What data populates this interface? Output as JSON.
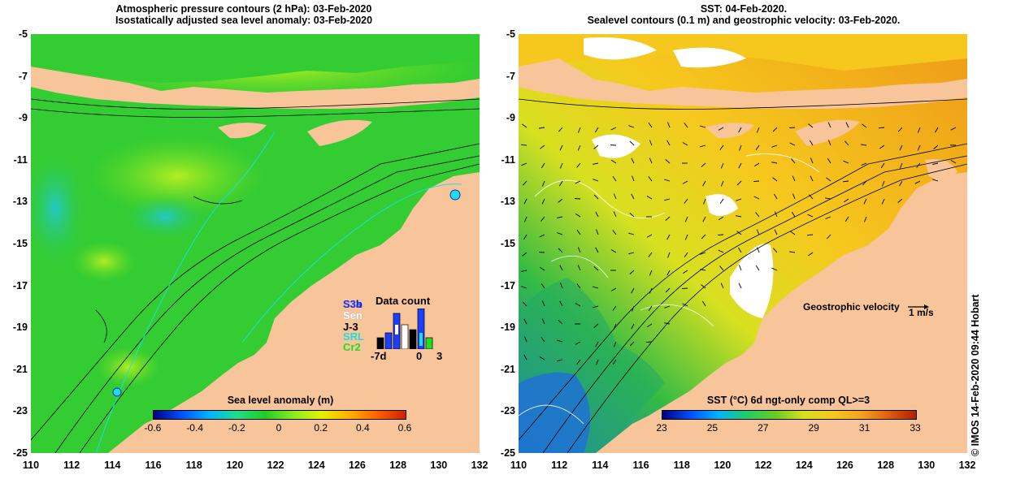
{
  "left_panel": {
    "title_line1": "Atmospheric pressure contours (2 hPa): 03-Feb-2020",
    "title_line2": "Isostatically adjusted sea level anomaly: 03-Feb-2020",
    "colorbar": {
      "title": "Sea level anomaly (m)",
      "ticks": [
        "-0.6",
        "-0.4",
        "-0.2",
        "0",
        "0.2",
        "0.4",
        "0.6"
      ]
    },
    "inset": {
      "title": "Data count",
      "satellites": [
        {
          "label": "S3b",
          "color": "#0000cc"
        },
        {
          "label": "S3a",
          "color": "#1a3fff"
        },
        {
          "label": "Sen",
          "color": "#ffffff"
        },
        {
          "label": "J-3",
          "color": "#000000"
        },
        {
          "label": "SRL",
          "color": "#22dddd"
        },
        {
          "label": "Cr2",
          "color": "#22dd22"
        }
      ],
      "axis_labels": [
        "-7d",
        "0",
        "3"
      ]
    }
  },
  "right_panel": {
    "title_line1": "SST: 04-Feb-2020.",
    "title_line2": "Sealevel contours (0.1 m) and geostrophic velocity: 03-Feb-2020.",
    "colorbar": {
      "title": "SST (°C) 6d ngt-only comp QL>=3",
      "ticks": [
        "23",
        "25",
        "27",
        "29",
        "31",
        "33"
      ]
    },
    "velocity_label": "Geostrophic velocity",
    "velocity_scale": "1 m/s"
  },
  "y_ticks": [
    "-5",
    "-7",
    "-9",
    "-11",
    "-13",
    "-15",
    "-17",
    "-19",
    "-21",
    "-23",
    "-25"
  ],
  "x_ticks": [
    "110",
    "112",
    "114",
    "116",
    "118",
    "120",
    "122",
    "124",
    "126",
    "128",
    "130",
    "132"
  ],
  "credit": "© IMOS 14-Feb-2020 09:44 Hobart",
  "colors": {
    "land": "#f8c49a",
    "ocean_green": "#33cc33",
    "ocean_yellow_green": "#aaee22",
    "ocean_cyan": "#22ccaa",
    "sst_orange": "#f5a623",
    "sst_yellow": "#f6d21e",
    "sst_green": "#66cc33",
    "sst_blue": "#1e6fd9"
  }
}
